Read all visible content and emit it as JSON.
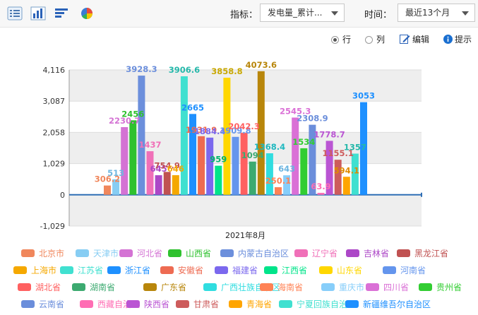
{
  "toolbar": {
    "indicator_label": "指标：",
    "indicator_value": "发电量_累计...",
    "time_label": "时间：",
    "time_value": "最近13个月"
  },
  "options": {
    "row_label": "行",
    "col_label": "列",
    "edit_label": "编辑",
    "hint_label": "提示",
    "selected": "row"
  },
  "chart_data": {
    "type": "bar",
    "categories": [
      "2021年8月"
    ],
    "ylim": [
      -1029,
      4116
    ],
    "yticks": [
      -1029,
      0,
      1029,
      2058,
      3087,
      4116
    ],
    "ytick_labels": [
      "-1,029",
      "0",
      "1,029",
      "2,058",
      "3,087",
      "4,116"
    ],
    "series": [
      {
        "name": "北京市",
        "value": 306.2,
        "label": "306.2",
        "color": "#f0875c"
      },
      {
        "name": "天津市",
        "value": 513,
        "label": "513",
        "color": "#87cdf3"
      },
      {
        "name": "河北省",
        "value": 2230.7,
        "label": "2230.7",
        "color": "#d473d4"
      },
      {
        "name": "山西省",
        "value": 2456,
        "label": "2456",
        "color": "#2fc12f"
      },
      {
        "name": "内蒙古自治区",
        "value": 3928.3,
        "label": "3928.3",
        "color": "#6c8fdc"
      },
      {
        "name": "辽宁省",
        "value": 1437,
        "label": "1437",
        "color": "#f070b8"
      },
      {
        "name": "吉林省",
        "value": 645,
        "label": "645",
        "color": "#ac47c7"
      },
      {
        "name": "黑龙江省",
        "value": 754.9,
        "label": "754.9",
        "color": "#c05252"
      },
      {
        "name": "上海市",
        "value": 646,
        "label": "646",
        "color": "#f5a800"
      },
      {
        "name": "江苏省",
        "value": 3906.6,
        "label": "3906.6",
        "color": "#40e0d0"
      },
      {
        "name": "浙江省",
        "value": 2665,
        "label": "2665",
        "color": "#1e90ff"
      },
      {
        "name": "安徽省",
        "value": 1931.9,
        "label": "1931.9",
        "color": "#ee6b52"
      },
      {
        "name": "福建省",
        "value": 1884.4,
        "label": "1884.4",
        "color": "#7b68ee"
      },
      {
        "name": "江西省",
        "value": 959,
        "label": "959",
        "color": "#00e48a"
      },
      {
        "name": "山东省",
        "value": 3858.8,
        "label": "3858.8",
        "color": "#ffd700"
      },
      {
        "name": "河南省",
        "value": 1909.8,
        "label": "1909.8",
        "color": "#6495ed"
      },
      {
        "name": "湖北省",
        "value": 2042.3,
        "label": "2042.3",
        "color": "#ff6060"
      },
      {
        "name": "湖南省",
        "value": 1094,
        "label": "1094",
        "color": "#3caa70"
      },
      {
        "name": "广东省",
        "value": 4073.6,
        "label": "4073.6",
        "color": "#b8860b"
      },
      {
        "name": "广西壮族自治区",
        "value": 1368.4,
        "label": "1368.4",
        "color": "#30dde0"
      },
      {
        "name": "海南省",
        "value": 250.1,
        "label": "250.1",
        "color": "#ff8255"
      },
      {
        "name": "重庆市",
        "value": 643,
        "label": "643",
        "color": "#87cefa"
      },
      {
        "name": "四川省",
        "value": 2545.3,
        "label": "2545.3",
        "color": "#da70d6"
      },
      {
        "name": "贵州省",
        "value": 1534,
        "label": "1534",
        "color": "#32cd32"
      },
      {
        "name": "云南省",
        "value": 2308.9,
        "label": "2308.9",
        "color": "#6b8edb"
      },
      {
        "name": "西藏自治区",
        "value": 63.9,
        "label": "63.9",
        "color": "#ff6eb4"
      },
      {
        "name": "陕西省",
        "value": 1778.7,
        "label": "1778.7",
        "color": "#ba55d3"
      },
      {
        "name": "甘肃省",
        "value": 1155.1,
        "label": "1155.1",
        "color": "#cd5c5c"
      },
      {
        "name": "青海省",
        "value": 594.1,
        "label": "594.1",
        "color": "#ffa500"
      },
      {
        "name": "宁夏回族自治区",
        "value": 1357,
        "label": "1357",
        "color": "#40e0d0"
      },
      {
        "name": "新疆维吾尔自治区",
        "value": 3053,
        "label": "3053",
        "color": "#1e90ff"
      }
    ]
  }
}
